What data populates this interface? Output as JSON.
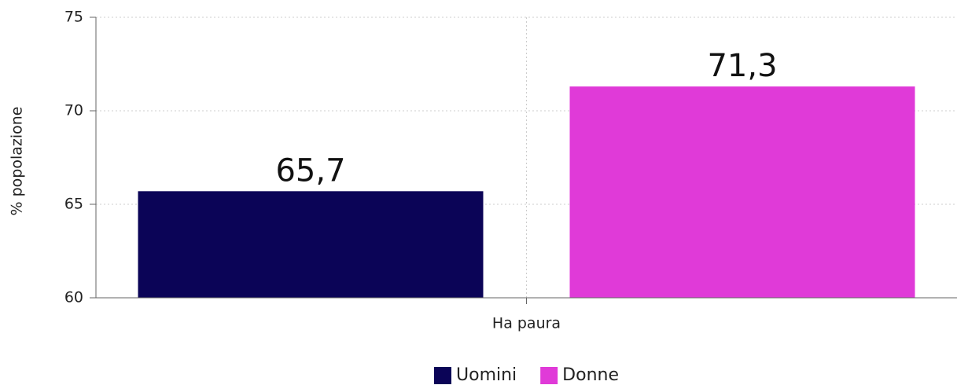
{
  "chart_data": {
    "type": "bar",
    "y_label": "% popolazione",
    "categories": [
      "Ha paura"
    ],
    "series": [
      {
        "name": "Uomini",
        "color": "#0b0457",
        "values": [
          65.7
        ],
        "value_labels": [
          "65,7"
        ]
      },
      {
        "name": "Donne",
        "color": "#e03ad8",
        "values": [
          71.3
        ],
        "value_labels": [
          "71,3"
        ]
      }
    ],
    "ylim": [
      60,
      75
    ],
    "yticks": [
      60,
      65,
      70,
      75
    ],
    "grid": true,
    "legend": "bottom"
  }
}
